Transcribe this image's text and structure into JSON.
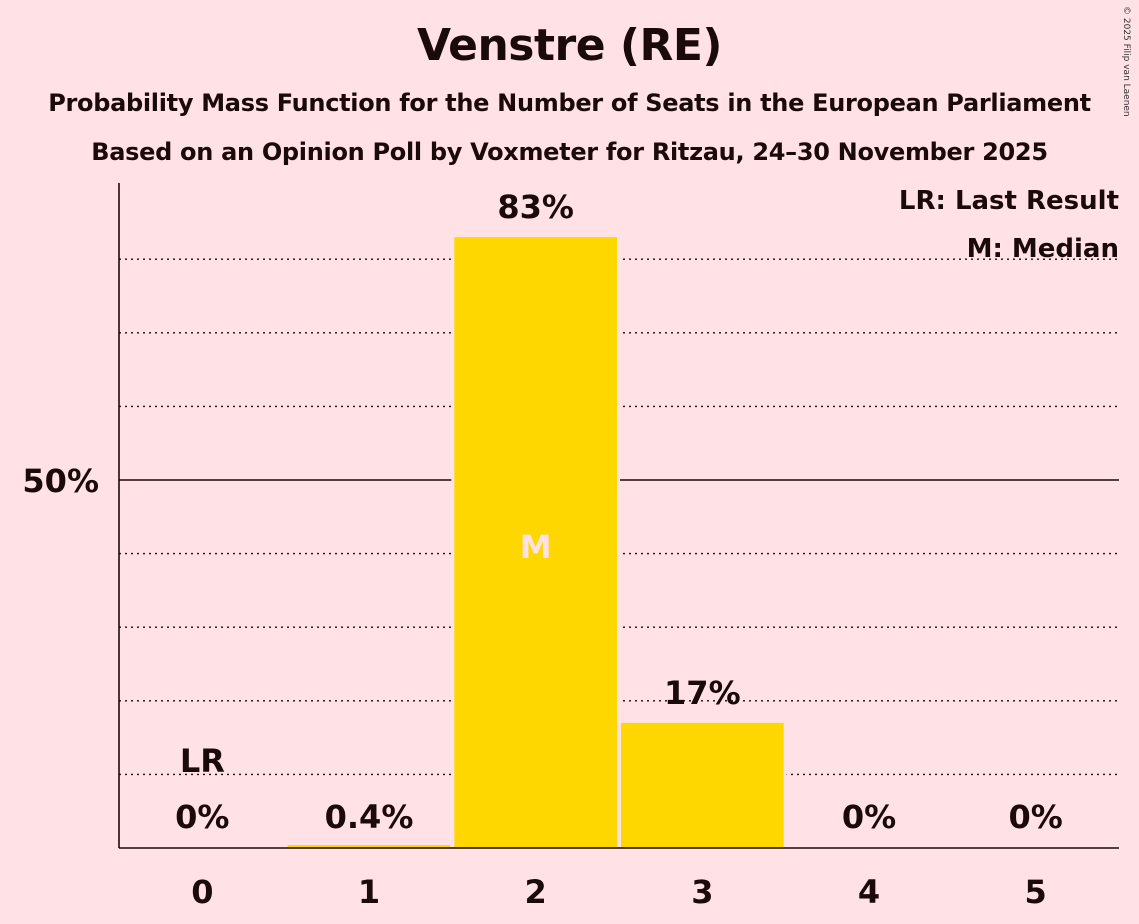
{
  "title": "Venstre (RE)",
  "subtitle1": "Probability Mass Function for the Number of Seats in the European Parliament",
  "subtitle2": "Based on an Opinion Poll by Voxmeter for Ritzau, 24–30 November 2025",
  "copyright": "© 2025 Filip van Laenen",
  "legend": {
    "lr": "LR: Last Result",
    "median": "M: Median"
  },
  "colors": {
    "bar": "#FFD700",
    "background": "#FFE1E6",
    "median_mark": "#FFE1E6"
  },
  "chart_data": {
    "type": "bar",
    "title": "Venstre (RE)",
    "xlabel": "",
    "ylabel": "",
    "categories": [
      "0",
      "1",
      "2",
      "3",
      "4",
      "5"
    ],
    "values": [
      0,
      0.4,
      83,
      17,
      0,
      0
    ],
    "labels": [
      "0%",
      "0.4%",
      "83%",
      "17%",
      "0%",
      "0%"
    ],
    "ylim": [
      0,
      90
    ],
    "gridlines": [
      10,
      20,
      30,
      40,
      50,
      60,
      70,
      80
    ],
    "major_gridline": 50,
    "y_tick_label": "50%",
    "last_result": {
      "category": "0",
      "label": "LR"
    },
    "median": {
      "category": "2",
      "label": "M"
    }
  }
}
